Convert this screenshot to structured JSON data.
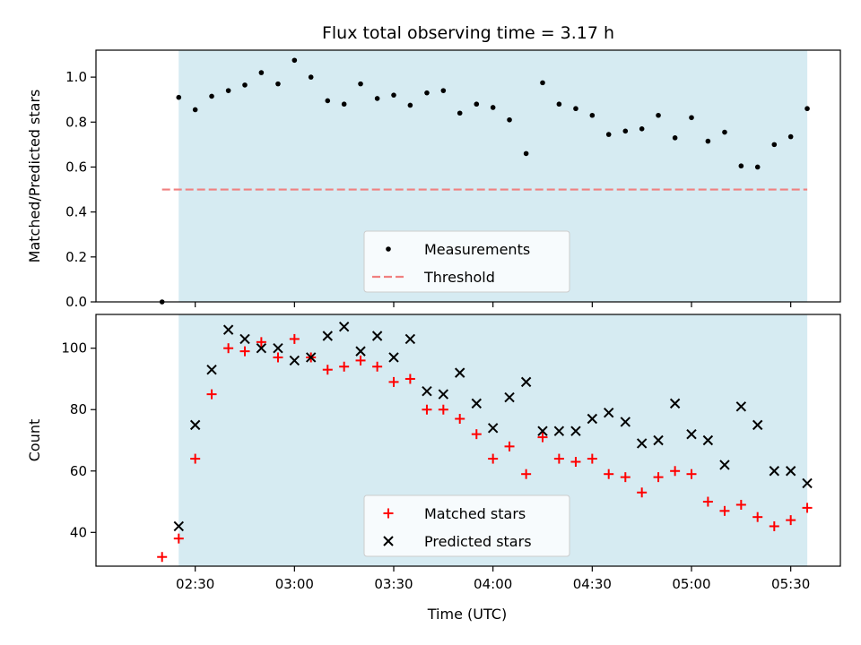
{
  "chart_data": [
    {
      "type": "scatter",
      "title": "Flux total observing time = 3.17 h",
      "xlabel": "",
      "ylabel": "Matched/Predicted stars",
      "x_range_hours": [
        2.0,
        5.75
      ],
      "ylim": [
        0.0,
        1.12
      ],
      "yticks": [
        0.0,
        0.2,
        0.4,
        0.6,
        0.8,
        1.0
      ],
      "ytick_labels": [
        "0.0",
        "0.2",
        "0.4",
        "0.6",
        "0.8",
        "1.0"
      ],
      "shaded_span_hours": [
        2.4167,
        5.5833
      ],
      "shaded_color": "#add8e6",
      "threshold": {
        "name": "Threshold",
        "value": 0.5,
        "x_start_hours": 2.333,
        "x_end_hours": 5.5833,
        "color": "#f08080"
      },
      "legend": {
        "position": "lower-center",
        "entries": [
          "Measurements",
          "Threshold"
        ]
      },
      "series": [
        {
          "name": "Measurements",
          "color": "#000000",
          "points": [
            [
              2.333,
              0.0
            ],
            [
              2.417,
              0.91
            ],
            [
              2.5,
              0.855
            ],
            [
              2.583,
              0.915
            ],
            [
              2.667,
              0.94
            ],
            [
              2.75,
              0.965
            ],
            [
              2.833,
              1.02
            ],
            [
              2.917,
              0.97
            ],
            [
              3.0,
              1.075
            ],
            [
              3.083,
              1.0
            ],
            [
              3.167,
              0.895
            ],
            [
              3.25,
              0.88
            ],
            [
              3.333,
              0.97
            ],
            [
              3.417,
              0.905
            ],
            [
              3.5,
              0.92
            ],
            [
              3.583,
              0.875
            ],
            [
              3.667,
              0.93
            ],
            [
              3.75,
              0.94
            ],
            [
              3.833,
              0.84
            ],
            [
              3.917,
              0.88
            ],
            [
              4.0,
              0.865
            ],
            [
              4.083,
              0.81
            ],
            [
              4.167,
              0.66
            ],
            [
              4.25,
              0.975
            ],
            [
              4.333,
              0.88
            ],
            [
              4.417,
              0.86
            ],
            [
              4.5,
              0.83
            ],
            [
              4.583,
              0.745
            ],
            [
              4.667,
              0.76
            ],
            [
              4.75,
              0.77
            ],
            [
              4.833,
              0.83
            ],
            [
              4.917,
              0.73
            ],
            [
              5.0,
              0.82
            ],
            [
              5.083,
              0.715
            ],
            [
              5.167,
              0.755
            ],
            [
              5.25,
              0.605
            ],
            [
              5.333,
              0.6
            ],
            [
              5.417,
              0.7
            ],
            [
              5.5,
              0.735
            ],
            [
              5.583,
              0.86
            ]
          ]
        }
      ]
    },
    {
      "type": "scatter",
      "title": "",
      "xlabel": "Time (UTC)",
      "ylabel": "Count",
      "x_range_hours": [
        2.0,
        5.75
      ],
      "ylim": [
        29,
        111
      ],
      "yticks": [
        40,
        60,
        80,
        100
      ],
      "ytick_labels": [
        "40",
        "60",
        "80",
        "100"
      ],
      "xticks_hours": [
        2.5,
        3.0,
        3.5,
        4.0,
        4.5,
        5.0,
        5.5
      ],
      "xtick_labels": [
        "02:30",
        "03:00",
        "03:30",
        "04:00",
        "04:30",
        "05:00",
        "05:30"
      ],
      "shaded_span_hours": [
        2.4167,
        5.5833
      ],
      "shaded_color": "#add8e6",
      "legend": {
        "position": "lower-center",
        "entries": [
          "Matched stars",
          "Predicted stars"
        ]
      },
      "series": [
        {
          "name": "Matched stars",
          "marker": "plus",
          "color": "#ff0000",
          "points": [
            [
              2.333,
              32
            ],
            [
              2.417,
              38
            ],
            [
              2.5,
              64
            ],
            [
              2.583,
              85
            ],
            [
              2.667,
              100
            ],
            [
              2.75,
              99
            ],
            [
              2.833,
              102
            ],
            [
              2.917,
              97
            ],
            [
              3.0,
              103
            ],
            [
              3.083,
              97
            ],
            [
              3.167,
              93
            ],
            [
              3.25,
              94
            ],
            [
              3.333,
              96
            ],
            [
              3.417,
              94
            ],
            [
              3.5,
              89
            ],
            [
              3.583,
              90
            ],
            [
              3.667,
              80
            ],
            [
              3.75,
              80
            ],
            [
              3.833,
              77
            ],
            [
              3.917,
              72
            ],
            [
              4.0,
              64
            ],
            [
              4.083,
              68
            ],
            [
              4.167,
              59
            ],
            [
              4.25,
              71
            ],
            [
              4.333,
              64
            ],
            [
              4.417,
              63
            ],
            [
              4.5,
              64
            ],
            [
              4.583,
              59
            ],
            [
              4.667,
              58
            ],
            [
              4.75,
              53
            ],
            [
              4.833,
              58
            ],
            [
              4.917,
              60
            ],
            [
              5.0,
              59
            ],
            [
              5.083,
              50
            ],
            [
              5.167,
              47
            ],
            [
              5.25,
              49
            ],
            [
              5.333,
              45
            ],
            [
              5.417,
              42
            ],
            [
              5.5,
              44
            ],
            [
              5.583,
              48
            ]
          ]
        },
        {
          "name": "Predicted stars",
          "marker": "x",
          "color": "#000000",
          "points": [
            [
              2.417,
              42
            ],
            [
              2.5,
              75
            ],
            [
              2.583,
              93
            ],
            [
              2.667,
              106
            ],
            [
              2.75,
              103
            ],
            [
              2.833,
              100
            ],
            [
              2.917,
              100
            ],
            [
              3.0,
              96
            ],
            [
              3.083,
              97
            ],
            [
              3.167,
              104
            ],
            [
              3.25,
              107
            ],
            [
              3.333,
              99
            ],
            [
              3.417,
              104
            ],
            [
              3.5,
              97
            ],
            [
              3.583,
              103
            ],
            [
              3.667,
              86
            ],
            [
              3.75,
              85
            ],
            [
              3.833,
              92
            ],
            [
              3.917,
              82
            ],
            [
              4.0,
              74
            ],
            [
              4.083,
              84
            ],
            [
              4.167,
              89
            ],
            [
              4.25,
              73
            ],
            [
              4.333,
              73
            ],
            [
              4.417,
              73
            ],
            [
              4.5,
              77
            ],
            [
              4.583,
              79
            ],
            [
              4.667,
              76
            ],
            [
              4.75,
              69
            ],
            [
              4.833,
              70
            ],
            [
              4.917,
              82
            ],
            [
              5.0,
              72
            ],
            [
              5.083,
              70
            ],
            [
              5.167,
              62
            ],
            [
              5.25,
              81
            ],
            [
              5.333,
              75
            ],
            [
              5.417,
              60
            ],
            [
              5.5,
              60
            ],
            [
              5.583,
              56
            ]
          ]
        }
      ]
    }
  ]
}
